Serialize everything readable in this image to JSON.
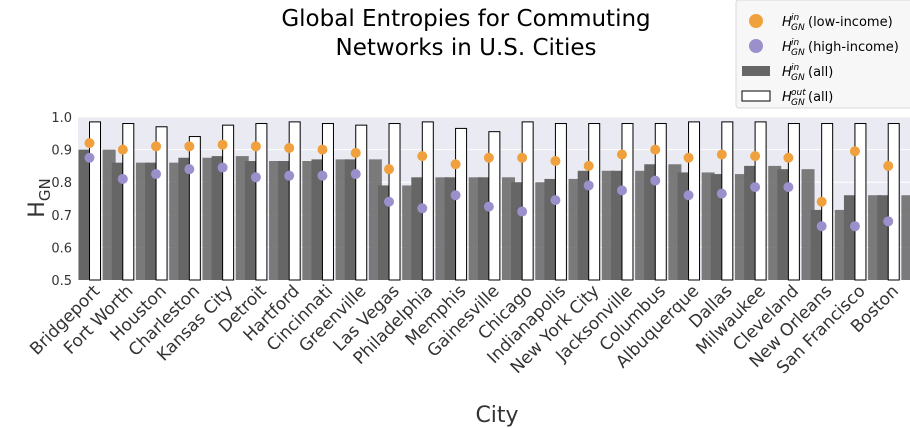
{
  "chart_data": {
    "type": "bar",
    "title": [
      "Global Entropies for Commuting",
      "Networks in U.S. Cities"
    ],
    "xlabel": "City",
    "ylabel": "H",
    "ylabel_sub": "GN",
    "ylim": [
      0.5,
      1.0
    ],
    "yticks": [
      "0.5",
      "0.6",
      "0.7",
      "0.8",
      "0.9",
      "1.0"
    ],
    "grid": true,
    "legend_position": "top-right",
    "categories": [
      "Bridgeport",
      "Fort Worth",
      "Houston",
      "Charleston",
      "Kansas City",
      "Detroit",
      "Hartford",
      "Cincinnati",
      "Greenville",
      "Las Vegas",
      "Philadelphia",
      "Memphis",
      "Gainesville",
      "Chicago",
      "Indianapolis",
      "New York City",
      "Jacksonville",
      "Columbus",
      "Albuquerque",
      "Dallas",
      "Milwaukee",
      "Cleveland",
      "New Orleans",
      "San Francisco",
      "Boston"
    ],
    "series": [
      {
        "name": "H_GN^in(all)",
        "label_main": "H",
        "label_sup": "in",
        "label_sub": "GN",
        "label_tail": "(all)",
        "kind": "bar",
        "color": "#666666",
        "values": [
          0.9,
          0.86,
          0.86,
          0.875,
          0.88,
          0.865,
          0.865,
          0.87,
          0.87,
          0.79,
          0.815,
          0.815,
          0.815,
          0.8,
          0.81,
          0.835,
          0.835,
          0.855,
          0.83,
          0.825,
          0.85,
          0.84,
          0.715,
          0.76,
          0.76
        ]
      },
      {
        "name": "H_GN^out(all)",
        "label_main": "H",
        "label_sup": "out",
        "label_sub": "GN",
        "label_tail": "(all)",
        "kind": "bar",
        "color": "#ffffff",
        "values": [
          0.985,
          0.98,
          0.97,
          0.94,
          0.975,
          0.98,
          0.985,
          0.98,
          0.975,
          0.98,
          0.985,
          0.965,
          0.955,
          0.985,
          0.98,
          0.98,
          0.98,
          0.98,
          0.985,
          0.985,
          0.985,
          0.98,
          0.98,
          0.98,
          0.98
        ]
      },
      {
        "name": "H_GN^in(low-income)",
        "label_main": "H",
        "label_sup": "in",
        "label_sub": "GN",
        "label_tail": "(low-income)",
        "kind": "point",
        "color": "#f0a03c",
        "values": [
          0.92,
          0.9,
          0.91,
          0.91,
          0.915,
          0.91,
          0.905,
          0.9,
          0.89,
          0.84,
          0.88,
          0.855,
          0.875,
          0.875,
          0.865,
          0.85,
          0.885,
          0.9,
          0.875,
          0.885,
          0.88,
          0.875,
          0.74,
          0.895,
          0.85
        ]
      },
      {
        "name": "H_GN^in(high-income)",
        "label_main": "H",
        "label_sup": "in",
        "label_sub": "GN",
        "label_tail": "(high-income)",
        "kind": "point",
        "color": "#9b8fcc",
        "values": [
          0.875,
          0.81,
          0.825,
          0.84,
          0.845,
          0.815,
          0.82,
          0.82,
          0.825,
          0.74,
          0.72,
          0.76,
          0.725,
          0.71,
          0.745,
          0.79,
          0.775,
          0.805,
          0.76,
          0.765,
          0.785,
          0.785,
          0.665,
          0.665,
          0.68
        ]
      }
    ],
    "legend_order": [
      2,
      3,
      0,
      1
    ]
  }
}
